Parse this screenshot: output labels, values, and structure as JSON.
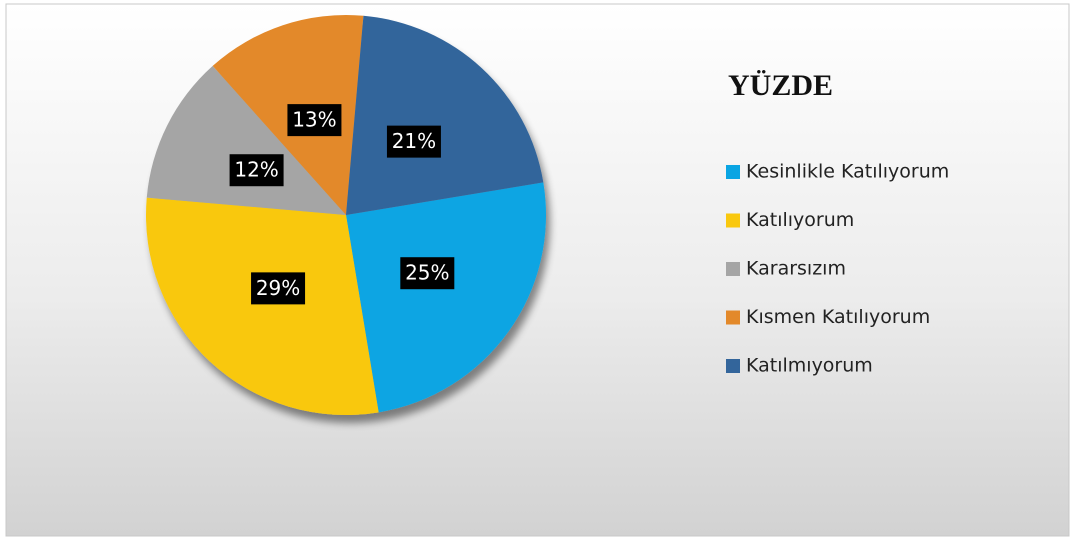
{
  "chart_data": {
    "type": "pie",
    "title": "YÜZDE",
    "categories": [
      "Kesinlikle Katılıyorum",
      "Katılıyorum",
      "Kararsızım",
      "Kısmen Katılıyorum",
      "Katılmıyorum"
    ],
    "values": [
      25,
      29,
      12,
      13,
      21
    ],
    "value_labels": [
      "25%",
      "29%",
      "12%",
      "13%",
      "21%"
    ],
    "colors": [
      "#0aa5e3",
      "#f9c80e",
      "#a5a5a5",
      "#e3892a",
      "#33659b"
    ],
    "legend": "right"
  }
}
